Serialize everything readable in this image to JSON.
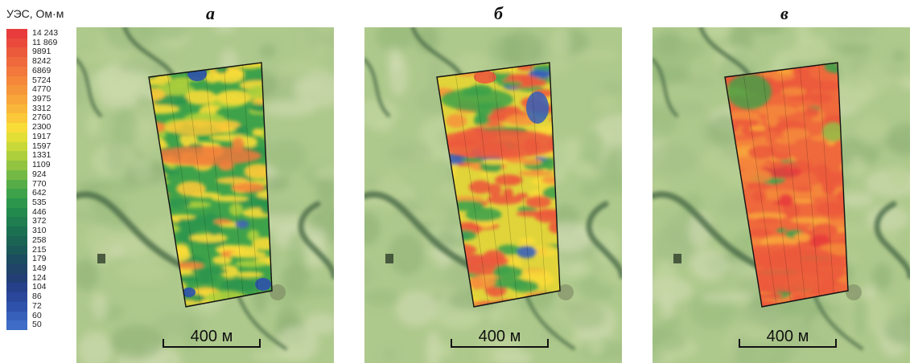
{
  "legend": {
    "title": "УЭС, Ом·м",
    "entries": [
      {
        "value": "14 243",
        "color": "#e83c3c"
      },
      {
        "value": "11 869",
        "color": "#ea4a3c"
      },
      {
        "value": "9891",
        "color": "#ec5a3c"
      },
      {
        "value": "8242",
        "color": "#ef693c"
      },
      {
        "value": "6869",
        "color": "#f2783c"
      },
      {
        "value": "5724",
        "color": "#f4873a"
      },
      {
        "value": "4770",
        "color": "#f6963a"
      },
      {
        "value": "3975",
        "color": "#f8a53a"
      },
      {
        "value": "3312",
        "color": "#f9b739"
      },
      {
        "value": "2760",
        "color": "#fac838"
      },
      {
        "value": "2300",
        "color": "#f8dc38"
      },
      {
        "value": "1917",
        "color": "#e2de36"
      },
      {
        "value": "1597",
        "color": "#c8d838"
      },
      {
        "value": "1331",
        "color": "#aecf3c"
      },
      {
        "value": "1109",
        "color": "#92c442"
      },
      {
        "value": "924",
        "color": "#74b946"
      },
      {
        "value": "770",
        "color": "#56ad48"
      },
      {
        "value": "642",
        "color": "#3ea24a"
      },
      {
        "value": "535",
        "color": "#2c964c"
      },
      {
        "value": "446",
        "color": "#238a4e"
      },
      {
        "value": "372",
        "color": "#1f7d50"
      },
      {
        "value": "310",
        "color": "#1c7052"
      },
      {
        "value": "258",
        "color": "#1b6454"
      },
      {
        "value": "215",
        "color": "#1b5858"
      },
      {
        "value": "179",
        "color": "#1c4c60"
      },
      {
        "value": "149",
        "color": "#1f4468"
      },
      {
        "value": "124",
        "color": "#223e74"
      },
      {
        "value": "104",
        "color": "#26408a"
      },
      {
        "value": "86",
        "color": "#2a479c"
      },
      {
        "value": "72",
        "color": "#2e52ac"
      },
      {
        "value": "60",
        "color": "#3660ba"
      },
      {
        "value": "50",
        "color": "#3e6cc6"
      }
    ]
  },
  "panels": [
    {
      "letter": "а",
      "scale_label": "400 м",
      "dominant": "green"
    },
    {
      "letter": "б",
      "scale_label": "400 м",
      "dominant": "mixed"
    },
    {
      "letter": "в",
      "scale_label": "400 м",
      "dominant": "red"
    }
  ],
  "colors": {
    "map_base": "#aec98c",
    "map_dark": "#4a6a46",
    "outline": "#111111"
  }
}
